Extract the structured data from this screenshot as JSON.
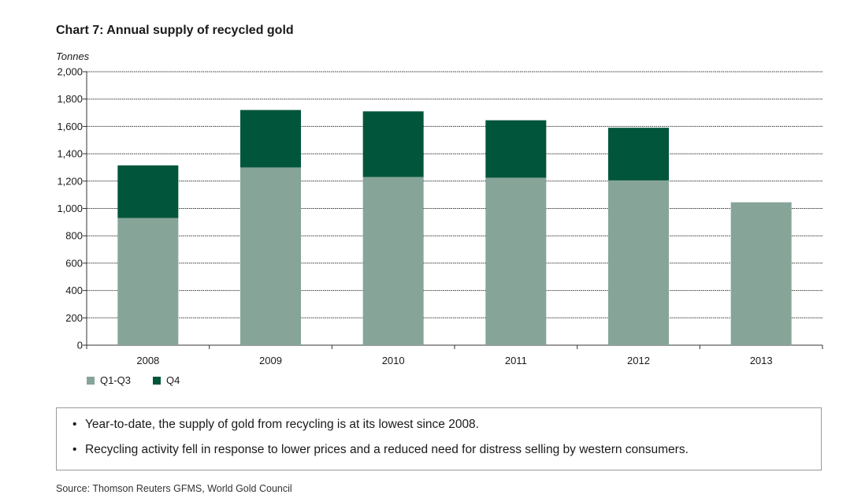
{
  "title": "Chart 7: Annual supply of recycled gold",
  "chart_data": {
    "type": "bar",
    "stacked": true,
    "title": "Chart 7: Annual supply of recycled gold",
    "ylabel": "Tonnes",
    "xlabel": "",
    "ylim": [
      0,
      2000
    ],
    "yticks": [
      "0",
      "200",
      "400",
      "600",
      "800",
      "1,000",
      "1,200",
      "1,400",
      "1,600",
      "1,800",
      "2,000"
    ],
    "grid": true,
    "legend_position": "bottom-left",
    "categories": [
      "2008",
      "2009",
      "2010",
      "2011",
      "2012",
      "2013"
    ],
    "series": [
      {
        "name": "Q1-Q3",
        "color": "#86a598",
        "values": [
          930,
          1300,
          1230,
          1225,
          1205,
          1045
        ]
      },
      {
        "name": "Q4",
        "color": "#00553b",
        "values": [
          385,
          420,
          480,
          420,
          385,
          0
        ]
      }
    ]
  },
  "notes": [
    "Year-to-date, the supply of gold from recycling is at its lowest since 2008.",
    "Recycling activity fell in response to lower prices and a reduced need for distress selling by western consumers."
  ],
  "bullet": "•",
  "source": "Source: Thomson Reuters GFMS, World Gold Council"
}
